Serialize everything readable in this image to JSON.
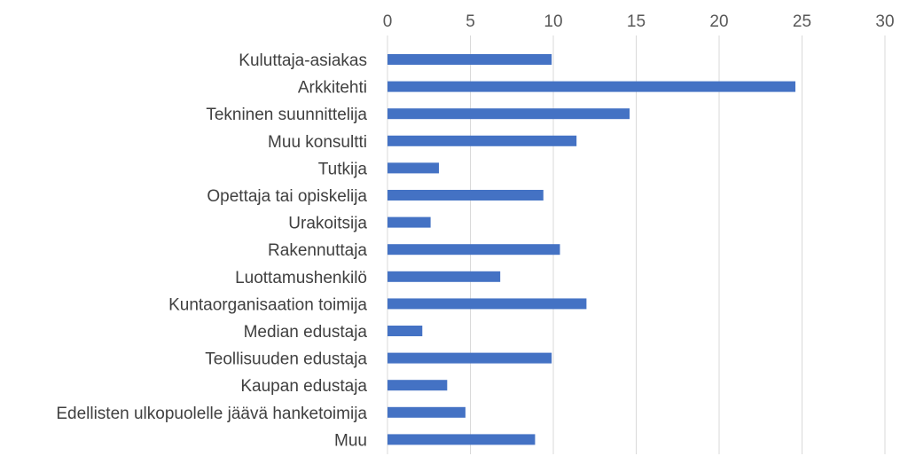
{
  "chart_data": {
    "type": "bar",
    "orientation": "horizontal",
    "title": "",
    "xlabel": "",
    "ylabel": "",
    "axis_position": "top",
    "xlim": [
      0,
      30
    ],
    "x_ticks": [
      0,
      5,
      10,
      15,
      20,
      25,
      30
    ],
    "grid": true,
    "legend": "none",
    "categories": [
      "Kuluttaja-asiakas",
      "Arkkitehti",
      "Tekninen suunnittelija",
      "Muu konsultti",
      "Tutkija",
      "Opettaja tai opiskelija",
      "Urakoitsija ",
      "Rakennuttaja",
      "Luottamushenkilö",
      "Kuntaorganisaation toimija",
      "Median edustaja",
      "Teollisuuden edustaja",
      "Kaupan edustaja",
      "Edellisten ulkopuolelle jäävä hanketoimija",
      "Muu"
    ],
    "values": [
      9.9,
      24.6,
      14.6,
      11.4,
      3.1,
      9.4,
      2.6,
      10.4,
      6.8,
      12.0,
      2.1,
      9.9,
      3.6,
      4.7,
      8.9
    ],
    "colors": {
      "bar": "#4472C4",
      "grid": "#D9D9D9",
      "tick_text": "#595959",
      "category_text": "#404040",
      "background": "#FFFFFF"
    }
  }
}
